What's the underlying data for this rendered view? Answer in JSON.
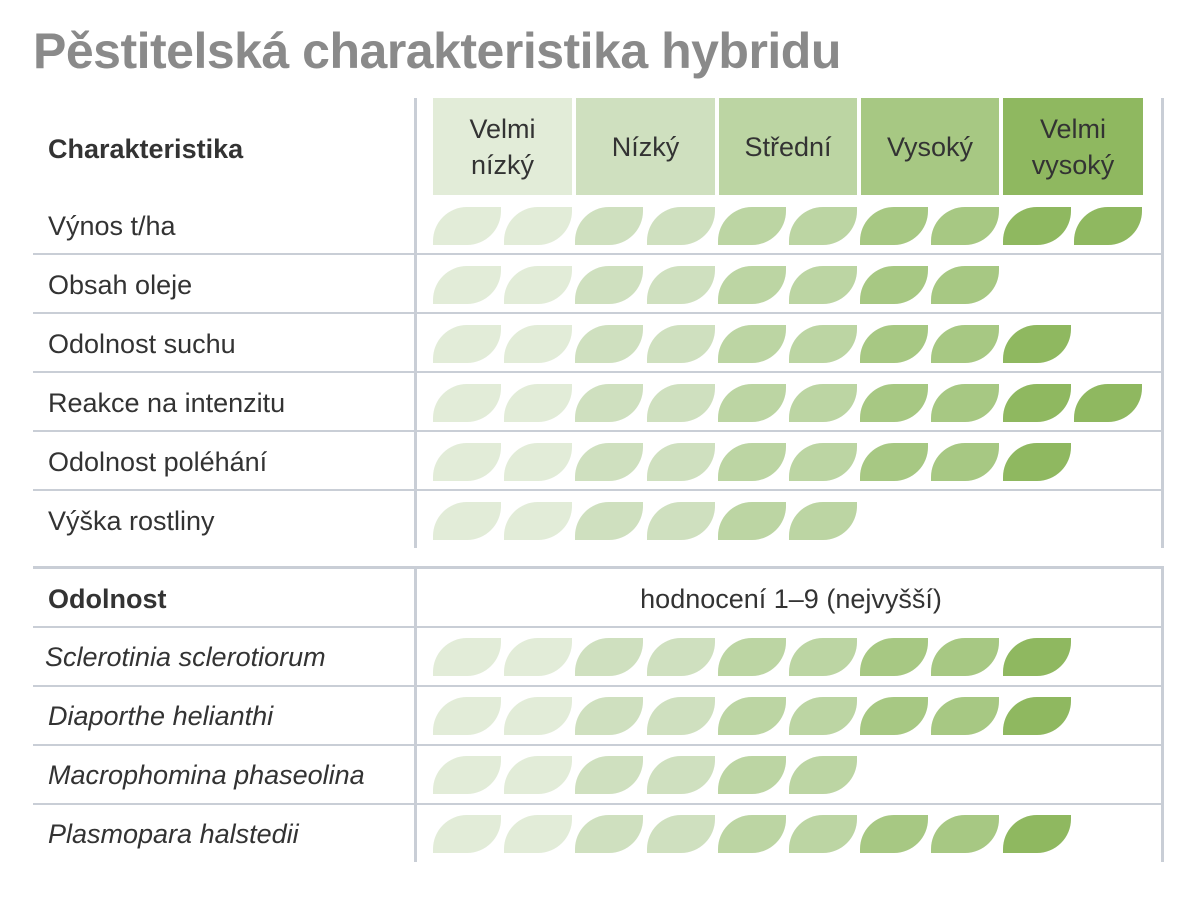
{
  "title": "Pěstitelská charakteristika hybridu",
  "levels": [
    {
      "label": [
        "Velmi",
        "nízký"
      ],
      "color": "#e2ecd8"
    },
    {
      "label": [
        "Nízký"
      ],
      "color": "#cfe0bf"
    },
    {
      "label": [
        "Střední"
      ],
      "color": "#bcd5a3"
    },
    {
      "label": [
        "Vysoký"
      ],
      "color": "#a7c883"
    },
    {
      "label": [
        "Velmi",
        "vysoký"
      ],
      "color": "#8fb860"
    }
  ],
  "sections": {
    "characteristics": {
      "heading": "Charakteristika",
      "rows": [
        {
          "label": "Výnos t/ha",
          "value": 10
        },
        {
          "label": "Obsah oleje",
          "value": 8
        },
        {
          "label": "Odolnost suchu",
          "value": 9
        },
        {
          "label": "Reakce na intenzitu",
          "value": 10
        },
        {
          "label": "Odolnost poléhání",
          "value": 9
        },
        {
          "label": "Výška rostliny",
          "value": 6
        }
      ]
    },
    "resistance": {
      "heading": "Odolnost",
      "scale_caption": "hodnocení 1–9 (nejvyšší)",
      "rows": [
        {
          "label": "Sclerotinia sclerotiorum",
          "value": 9
        },
        {
          "label": "Diaporthe helianthi",
          "value": 9
        },
        {
          "label": "Macrophomina phaseolina",
          "value": 6
        },
        {
          "label": "Plasmopara halstedii",
          "value": 9
        }
      ]
    }
  },
  "chart_data": {
    "type": "table",
    "title": "Pěstitelská charakteristika hybridu",
    "scale_levels": [
      "Velmi nízký",
      "Nízký",
      "Střední",
      "Vysoký",
      "Velmi vysoký"
    ],
    "leaf_colors": [
      "#e2ecd8",
      "#e2ecd8",
      "#cfe0bf",
      "#cfe0bf",
      "#bcd5a3",
      "#bcd5a3",
      "#a7c883",
      "#a7c883",
      "#8fb860",
      "#8fb860"
    ],
    "series": [
      {
        "name": "Charakteristika",
        "categories": [
          "Výnos t/ha",
          "Obsah oleje",
          "Odolnost suchu",
          "Reakce na intenzitu",
          "Odolnost poléhání",
          "Výška rostliny"
        ],
        "values": [
          10,
          8,
          9,
          10,
          9,
          6
        ],
        "max": 10
      },
      {
        "name": "Odolnost",
        "categories": [
          "Sclerotinia sclerotiorum",
          "Diaporthe helianthi",
          "Macrophomina phaseolina",
          "Plasmopara halstedii"
        ],
        "values": [
          9,
          9,
          6,
          9
        ],
        "max": 9
      }
    ]
  }
}
